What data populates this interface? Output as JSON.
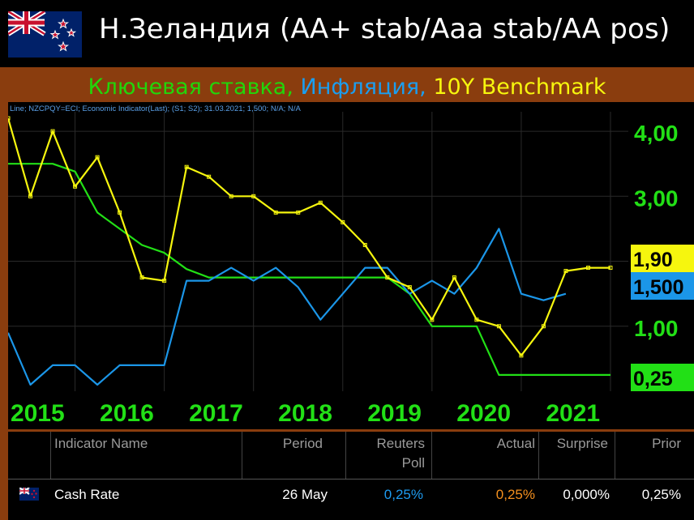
{
  "header": {
    "title": "Н.Зеландия (АА+ stab/Aaa stab/AA pos)",
    "subtitle_parts": [
      {
        "text": "Ключевая ставка, ",
        "color": "#22d60a"
      },
      {
        "text": "Инфляция, ",
        "color": "#1b9ef0"
      },
      {
        "text": "10Y Benchmark",
        "color": "#f6f60e"
      }
    ]
  },
  "chart_data": {
    "type": "line",
    "info_line": "Line; NZCPQY=ECI; Economic Indicator(Last); (S1; S2); 31.03.2021; 1,500; N/A; N/A",
    "x_tick_labels": [
      "2015",
      "2016",
      "2017",
      "2018",
      "2019",
      "2020",
      "2021"
    ],
    "y_tick_labels": [
      "4,00",
      "3,00",
      "1,00"
    ],
    "yrange": [
      0,
      4.3
    ],
    "xrange": [
      2014.75,
      2021.7
    ],
    "grid": true,
    "series": [
      {
        "color": "#22e016",
        "last_value_label": "0,25",
        "x": [
          2014.75,
          2015.0,
          2015.25,
          2015.5,
          2015.75,
          2016.25,
          2016.5,
          2016.75,
          2017.0,
          2018.0,
          2018.75,
          2019.0,
          2019.25,
          2019.5,
          2019.75,
          2020.0,
          2020.25,
          2021.0,
          2021.5
        ],
        "y": [
          3.5,
          3.5,
          3.5,
          3.38,
          2.75,
          2.25,
          2.13,
          1.88,
          1.75,
          1.75,
          1.75,
          1.75,
          1.5,
          1.0,
          1.0,
          1.0,
          0.25,
          0.25,
          0.25
        ]
      },
      {
        "color": "#1b96e8",
        "last_value_label": "1,500",
        "x": [
          2014.75,
          2015.0,
          2015.25,
          2015.5,
          2015.75,
          2016.0,
          2016.25,
          2016.5,
          2016.75,
          2017.0,
          2017.25,
          2017.5,
          2017.75,
          2018.0,
          2018.25,
          2018.5,
          2018.75,
          2019.0,
          2019.25,
          2019.5,
          2019.75,
          2020.0,
          2020.25,
          2020.5,
          2020.75,
          2021.0
        ],
        "y": [
          0.9,
          0.1,
          0.4,
          0.4,
          0.1,
          0.4,
          0.4,
          0.4,
          1.7,
          1.7,
          1.9,
          1.7,
          1.9,
          1.6,
          1.1,
          1.5,
          1.9,
          1.9,
          1.5,
          1.7,
          1.5,
          1.9,
          2.5,
          1.5,
          1.4,
          1.5
        ]
      },
      {
        "color": "#f6f60e",
        "last_value_label": "1,90",
        "x": [
          2014.75,
          2015.0,
          2015.25,
          2015.5,
          2015.75,
          2016.0,
          2016.25,
          2016.5,
          2016.75,
          2017.0,
          2017.25,
          2017.5,
          2017.75,
          2018.0,
          2018.25,
          2018.5,
          2018.75,
          2019.0,
          2019.25,
          2019.5,
          2019.75,
          2020.0,
          2020.25,
          2020.5,
          2020.75,
          2021.0,
          2021.25,
          2021.5
        ],
        "y": [
          4.2,
          3.0,
          4.0,
          3.15,
          3.6,
          2.75,
          1.75,
          1.7,
          3.45,
          3.3,
          3.0,
          3.0,
          2.75,
          2.75,
          2.9,
          2.6,
          2.25,
          1.75,
          1.6,
          1.1,
          1.75,
          1.1,
          1.0,
          0.55,
          1.0,
          1.85,
          1.9,
          1.9
        ]
      }
    ]
  },
  "table": {
    "headers": {
      "indicator_name": "Indicator Name",
      "period": "Period",
      "reuters_poll_line1": "Reuters",
      "reuters_poll_line2": "Poll",
      "actual": "Actual",
      "surprise": "Surprise",
      "prior": "Prior"
    },
    "row": {
      "indicator_name": "Cash Rate",
      "period": "26 May",
      "reuters_poll": "0,25%",
      "actual": "0,25%",
      "surprise": "0,000%",
      "prior": "0,25%"
    },
    "colors": {
      "poll": "#1e9bf0",
      "actual": "#f5901e"
    }
  }
}
